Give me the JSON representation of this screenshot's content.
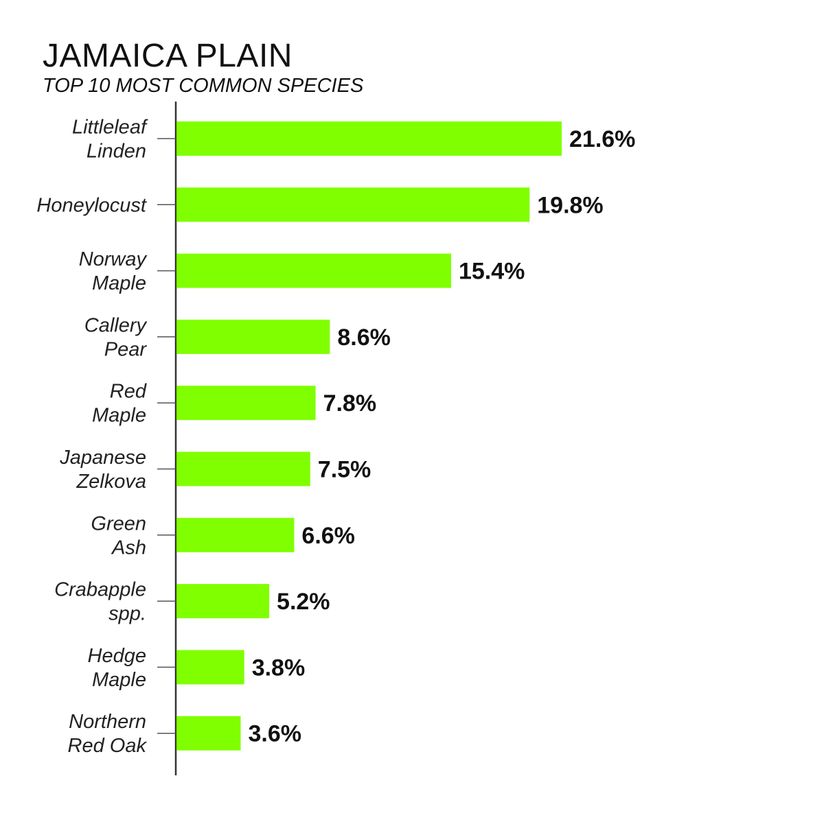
{
  "chart_data": {
    "type": "bar",
    "orientation": "horizontal",
    "title": "JAMAICA PLAIN",
    "subtitle": "TOP 10 MOST COMMON SPECIES",
    "categories": [
      [
        "Littleleaf",
        "Linden"
      ],
      [
        "Honeylocust"
      ],
      [
        "Norway",
        "Maple"
      ],
      [
        "Callery",
        "Pear"
      ],
      [
        "Red",
        "Maple"
      ],
      [
        "Japanese",
        "Zelkova"
      ],
      [
        "Green",
        "Ash"
      ],
      [
        "Crabapple",
        "spp."
      ],
      [
        "Hedge",
        "Maple"
      ],
      [
        "Northern",
        "Red Oak"
      ]
    ],
    "values": [
      21.6,
      19.8,
      15.4,
      8.6,
      7.8,
      7.5,
      6.6,
      5.2,
      3.8,
      3.6
    ],
    "value_labels": [
      "21.6%",
      "19.8%",
      "15.4%",
      "8.6%",
      "7.8%",
      "7.5%",
      "6.6%",
      "5.2%",
      "3.8%",
      "3.6%"
    ],
    "unit": "%",
    "bar_color": "#80ff00",
    "axis_color": "#333333",
    "grid": false,
    "legend": "none"
  }
}
